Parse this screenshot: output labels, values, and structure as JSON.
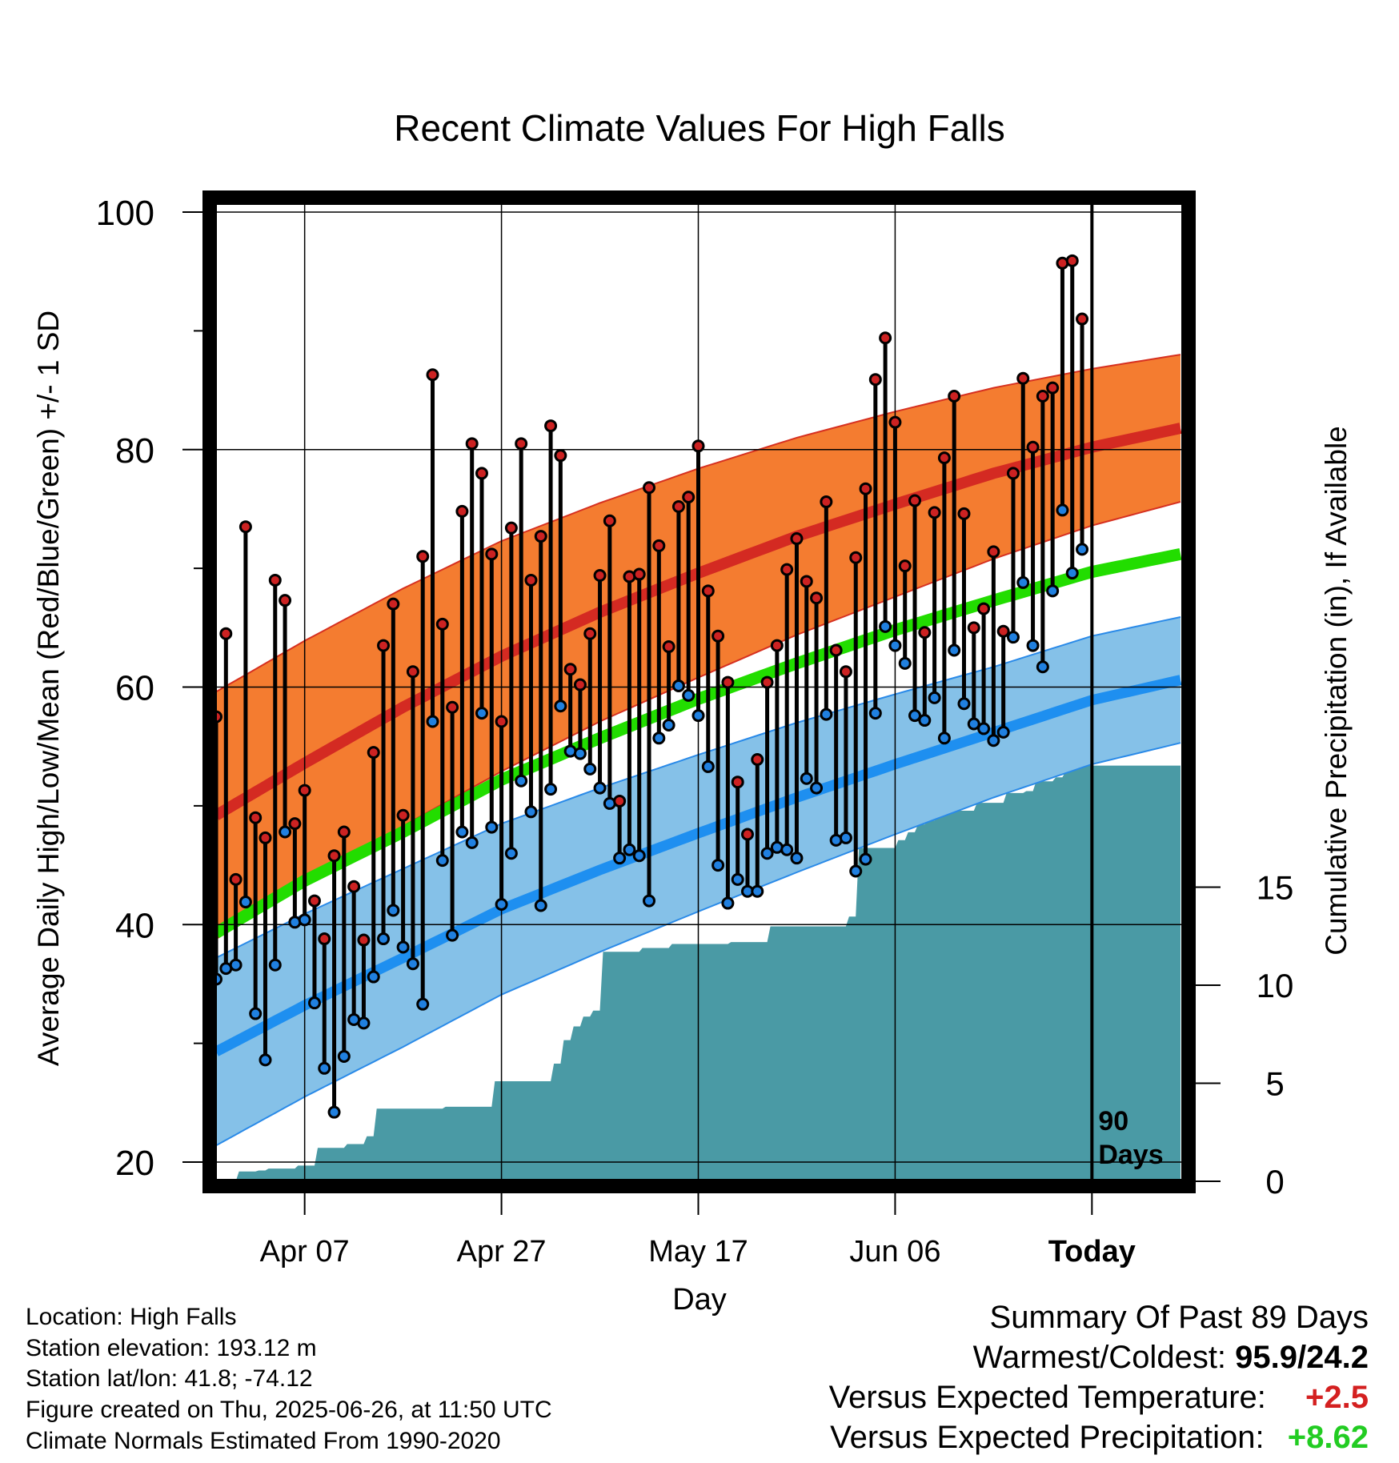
{
  "chart_data": {
    "type": "line",
    "title": "Recent Climate Values For High Falls",
    "xlabel": "Day",
    "ylabel_left": "Average Daily High/Low/Mean (Red/Blue/Green) +/- 1 SD",
    "ylabel_right": "Cumulative Precipitation (in), If Available",
    "x_day_range": [
      -89,
      9
    ],
    "x_ticks": [
      {
        "day": -80,
        "label": "Apr 07"
      },
      {
        "day": -60,
        "label": "Apr 27"
      },
      {
        "day": -40,
        "label": "May 17"
      },
      {
        "day": -20,
        "label": "Jun 06"
      },
      {
        "day": 0,
        "label": "Today"
      }
    ],
    "ylim_left": [
      14.5,
      101
    ],
    "y_ticks_left": [
      20,
      40,
      60,
      80,
      100
    ],
    "ylim_right": [
      0,
      30
    ],
    "y_ticks_right": [
      0,
      5,
      10,
      15
    ],
    "grid": true,
    "today_marker_label_1": "90",
    "today_marker_label_2": "Days",
    "normals": {
      "day": [
        -89,
        -80,
        -70,
        -60,
        -50,
        -40,
        -30,
        -20,
        -10,
        0,
        9
      ],
      "high_mean": [
        49.2,
        53.6,
        58.3,
        62.6,
        66.3,
        69.6,
        72.7,
        75.4,
        78.0,
        80.2,
        81.8
      ],
      "high_sd": [
        10.4,
        10.3,
        10.0,
        9.7,
        9.2,
        8.8,
        8.3,
        7.8,
        7.2,
        6.6,
        6.2
      ],
      "mean_mean": [
        39.3,
        43.7,
        47.8,
        52.2,
        55.7,
        59.0,
        62.0,
        64.8,
        67.3,
        69.7,
        71.2
      ],
      "low_mean": [
        29.3,
        33.2,
        37.2,
        41.3,
        44.6,
        47.7,
        50.7,
        53.5,
        56.2,
        58.9,
        60.6
      ],
      "low_sd": [
        7.9,
        7.7,
        7.5,
        7.2,
        6.9,
        6.6,
        6.3,
        5.9,
        5.5,
        5.4,
        5.3
      ]
    },
    "series": [
      {
        "name": "High",
        "color": "#cc2222",
        "values": [
          57.5,
          64.5,
          43.8,
          73.5,
          49.0,
          47.3,
          69.0,
          67.3,
          48.5,
          51.3,
          42.0,
          38.8,
          45.8,
          47.8,
          43.2,
          38.7,
          54.5,
          63.5,
          67.0,
          49.2,
          61.3,
          71.0,
          86.3,
          65.3,
          58.3,
          74.8,
          80.5,
          78.0,
          71.2,
          57.1,
          73.4,
          80.5,
          69.0,
          72.7,
          82.0,
          79.5,
          61.5,
          60.2,
          64.5,
          69.4,
          74.0,
          50.4,
          69.3,
          69.5,
          76.8,
          71.9,
          63.4,
          75.2,
          76.0,
          80.3,
          68.1,
          64.3,
          60.4,
          52.0,
          47.6,
          53.9,
          60.4,
          63.5,
          69.9,
          72.5,
          68.9,
          67.5,
          75.6,
          63.1,
          61.3,
          70.9,
          76.7,
          85.9,
          89.4,
          82.3,
          70.2,
          75.7,
          64.6,
          74.7,
          79.3,
          84.5,
          74.6,
          65.0,
          66.6,
          71.4,
          64.7,
          78.0,
          86.0,
          80.2,
          84.5,
          85.2,
          95.7,
          95.9,
          91.0
        ]
      },
      {
        "name": "Low",
        "color": "#2080e0",
        "values": [
          35.4,
          36.3,
          36.6,
          41.9,
          32.5,
          28.6,
          36.6,
          47.8,
          40.2,
          40.4,
          33.4,
          27.9,
          24.2,
          28.9,
          32.0,
          31.7,
          35.6,
          38.8,
          41.2,
          38.1,
          36.7,
          33.3,
          57.1,
          45.4,
          39.1,
          47.8,
          46.9,
          57.8,
          48.2,
          41.7,
          46.0,
          52.1,
          49.5,
          41.6,
          51.4,
          58.4,
          54.6,
          54.4,
          53.1,
          51.5,
          50.2,
          45.6,
          46.3,
          45.8,
          42.0,
          55.7,
          56.8,
          60.1,
          59.3,
          57.6,
          53.3,
          45.0,
          41.8,
          43.8,
          42.8,
          42.8,
          46.0,
          46.5,
          46.3,
          45.6,
          52.3,
          51.5,
          57.7,
          47.1,
          47.3,
          44.5,
          45.5,
          57.8,
          65.1,
          63.5,
          62.0,
          57.6,
          57.2,
          59.1,
          55.7,
          63.1,
          58.6,
          56.9,
          56.5,
          55.5,
          56.2,
          64.2,
          68.8,
          63.5,
          61.7,
          68.1,
          74.9,
          69.6,
          71.6
        ]
      },
      {
        "name": "Cumulative Precipitation",
        "color": "#4a9aa5",
        "day": [
          -87,
          -85,
          -84,
          -81,
          -79,
          -76,
          -74,
          -73,
          -70,
          -66,
          -65,
          -62,
          -61,
          -58,
          -56,
          -55,
          -54,
          -53,
          -52,
          -51,
          -50,
          -47,
          -46,
          -43,
          -40,
          -37,
          -36,
          -33,
          -30,
          -25,
          -24,
          -21,
          -20,
          -19,
          -18,
          -17,
          -16,
          -14,
          -12,
          -11,
          -9,
          -7,
          -6,
          -4,
          -3,
          -2,
          -1,
          0
        ],
        "values": [
          0.5,
          0.55,
          0.65,
          0.8,
          1.7,
          1.9,
          2.3,
          3.7,
          3.7,
          3.8,
          3.8,
          3.8,
          5.1,
          5.1,
          5.1,
          6.0,
          7.2,
          7.9,
          8.4,
          8.7,
          11.7,
          11.7,
          11.9,
          12.1,
          12.1,
          12.2,
          12.2,
          13.0,
          13.0,
          13.5,
          17.0,
          17.0,
          17.4,
          17.8,
          18.2,
          18.4,
          18.8,
          18.9,
          19.3,
          19.3,
          19.8,
          19.9,
          20.4,
          20.6,
          20.9,
          21.2,
          21.2,
          21.2
        ]
      }
    ]
  },
  "station": {
    "location": "Location: High Falls",
    "elevation": "Station elevation: 193.12 m",
    "latlon": "Station lat/lon: 41.8; -74.12",
    "created": "Figure created on Thu, 2025-06-26, at 11:50 UTC",
    "normals_note": "Climate Normals Estimated From 1990-2020"
  },
  "summary": {
    "heading": "Summary Of Past 89 Days",
    "warm_cold_label": "Warmest/Coldest:",
    "warm_cold_value": "95.9/24.2",
    "temp_label": "Versus Expected Temperature:",
    "temp_value": "+2.5",
    "precip_label": "Versus Expected Precipitation:",
    "precip_value": "+8.62"
  }
}
